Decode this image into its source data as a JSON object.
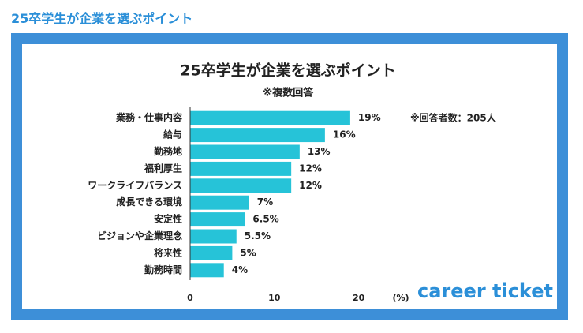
{
  "header": {
    "title": "25卒学生が企業を選ぶポイント"
  },
  "chart_data": {
    "type": "hbar",
    "title": "25卒学生が企業を選ぶポイント",
    "subtitle": "※複数回答",
    "annotation": "※回答者数：205人",
    "x_label": "(%)",
    "logo": "career ticket",
    "categories": [
      "業務・仕事内容",
      "給与",
      "勤務地",
      "福利厚生",
      "ワークライフバランス",
      "成長できる環境",
      "安定性",
      "ビジョンや企業理念",
      "将来性",
      "勤務時間"
    ],
    "values": [
      19,
      16,
      13,
      12,
      12,
      7,
      6.5,
      5.5,
      5,
      4
    ],
    "value_labels": [
      "19%",
      "16%",
      "13%",
      "12%",
      "12%",
      "7%",
      "6.5%",
      "5.5%",
      "5%",
      "4%"
    ],
    "color": "#26c3d8",
    "xlim": [
      0,
      25
    ],
    "xticks": [
      0,
      10,
      20
    ]
  }
}
